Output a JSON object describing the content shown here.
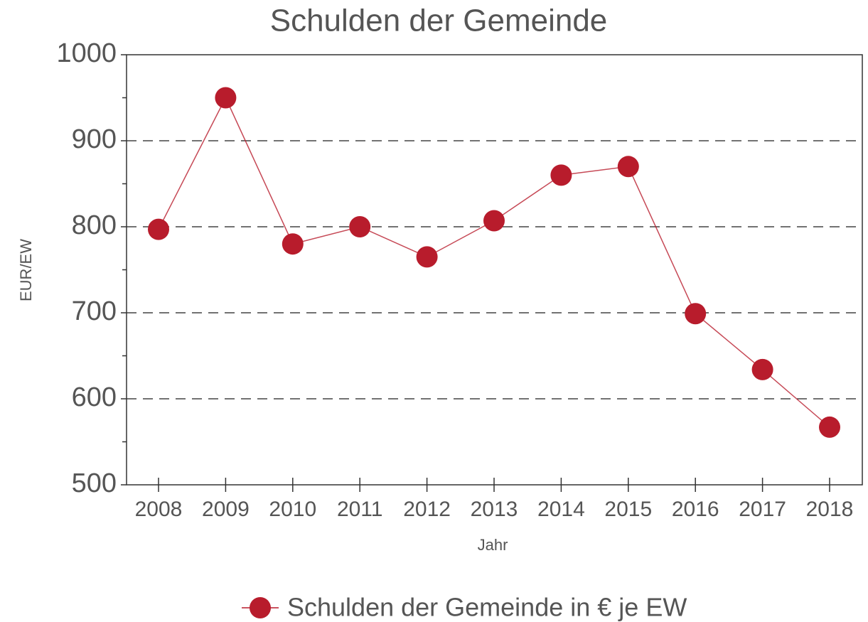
{
  "chart_data": {
    "type": "line",
    "title": "Schulden der Gemeinde",
    "x_label": "Jahr",
    "y_label": "EUR/EW",
    "categories": [
      "2008",
      "2009",
      "2010",
      "2011",
      "2012",
      "2013",
      "2014",
      "2015",
      "2016",
      "2017",
      "2018"
    ],
    "series": [
      {
        "name": "Schulden der Gemeinde in € je EW",
        "color": "#b81c2c",
        "values": [
          797,
          950,
          780,
          800,
          765,
          807,
          860,
          870,
          699,
          634,
          567
        ]
      }
    ],
    "ylim": [
      500,
      1000
    ],
    "yticks": [
      500,
      600,
      700,
      800,
      900,
      1000
    ],
    "yminorticks": [
      550,
      650,
      750,
      850,
      950
    ],
    "grid": true,
    "legend": "bottom"
  }
}
